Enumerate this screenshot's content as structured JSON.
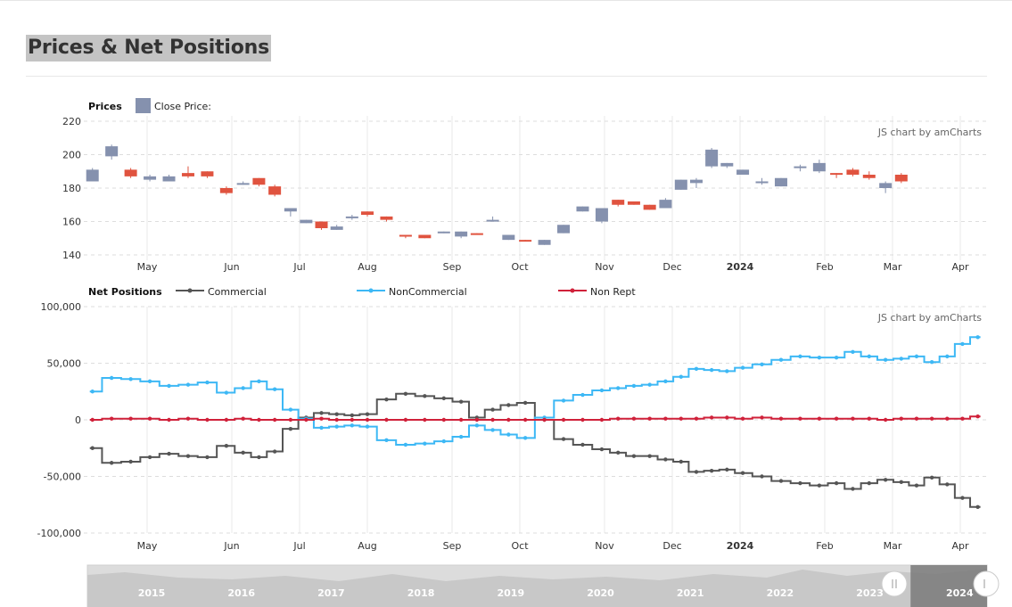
{
  "page_title": "Prices & Net Positions",
  "colors": {
    "up_candle": "#8591ae",
    "down_candle": "#e0533f",
    "commercial": "#555555",
    "noncommercial": "#3db8f5",
    "nonrept": "#d0213a",
    "grid": "#e8e8e8"
  },
  "icons": {
    "legend_close_price": "square-swatch-icon",
    "legend_series": "line-with-dot-icon",
    "scrollbar_grip": "grip-handle-icon"
  },
  "chart_data": [
    {
      "type": "candlestick",
      "legend_title": "Prices",
      "legend_items": [
        "Close Price:"
      ],
      "credit": "JS chart by amCharts",
      "ylim": [
        140,
        220
      ],
      "y_ticks": [
        "220",
        "200",
        "180",
        "160",
        "140"
      ],
      "x_ticks": [
        "May",
        "Jun",
        "Jul",
        "Aug",
        "Sep",
        "Oct",
        "Nov",
        "Dec",
        "2024",
        "Feb",
        "Mar",
        "Apr"
      ],
      "grid": "dashed horizontal, solid vertical",
      "candles": [
        {
          "date": "2023-04-11",
          "open": 184,
          "close": 191,
          "high": 192,
          "low": 184
        },
        {
          "date": "2023-04-18",
          "open": 199,
          "close": 205,
          "high": 206,
          "low": 197
        },
        {
          "date": "2023-04-25",
          "open": 191,
          "close": 187,
          "high": 192,
          "low": 186
        },
        {
          "date": "2023-05-02",
          "open": 185,
          "close": 187,
          "high": 188,
          "low": 184
        },
        {
          "date": "2023-05-09",
          "open": 184,
          "close": 187,
          "high": 188,
          "low": 184
        },
        {
          "date": "2023-05-16",
          "open": 189,
          "close": 187,
          "high": 193,
          "low": 186
        },
        {
          "date": "2023-05-23",
          "open": 190,
          "close": 187,
          "high": 190,
          "low": 186
        },
        {
          "date": "2023-05-30",
          "open": 180,
          "close": 177,
          "high": 181,
          "low": 176
        },
        {
          "date": "2023-06-06",
          "open": 182,
          "close": 183,
          "high": 184,
          "low": 182
        },
        {
          "date": "2023-06-13",
          "open": 186,
          "close": 182,
          "high": 186,
          "low": 181
        },
        {
          "date": "2023-06-20",
          "open": 181,
          "close": 176,
          "high": 182,
          "low": 175
        },
        {
          "date": "2023-06-27",
          "open": 166,
          "close": 168,
          "high": 168,
          "low": 163
        },
        {
          "date": "2023-07-04",
          "open": 159,
          "close": 161,
          "high": 161,
          "low": 159
        },
        {
          "date": "2023-07-11",
          "open": 160,
          "close": 156,
          "high": 160,
          "low": 155
        },
        {
          "date": "2023-07-18",
          "open": 155,
          "close": 157,
          "high": 158,
          "low": 155
        },
        {
          "date": "2023-07-25",
          "open": 162,
          "close": 163,
          "high": 164,
          "low": 161
        },
        {
          "date": "2023-08-01",
          "open": 166,
          "close": 164,
          "high": 166,
          "low": 163
        },
        {
          "date": "2023-08-08",
          "open": 163,
          "close": 161,
          "high": 163,
          "low": 160
        },
        {
          "date": "2023-08-15",
          "open": 152,
          "close": 151,
          "high": 152,
          "low": 150
        },
        {
          "date": "2023-08-22",
          "open": 152,
          "close": 150,
          "high": 152,
          "low": 150
        },
        {
          "date": "2023-08-29",
          "open": 153,
          "close": 154,
          "high": 154,
          "low": 153
        },
        {
          "date": "2023-09-05",
          "open": 151,
          "close": 154,
          "high": 154,
          "low": 150
        },
        {
          "date": "2023-09-12",
          "open": 153,
          "close": 152,
          "high": 153,
          "low": 152
        },
        {
          "date": "2023-09-19",
          "open": 160,
          "close": 161,
          "high": 163,
          "low": 160
        },
        {
          "date": "2023-09-26",
          "open": 149,
          "close": 152,
          "high": 152,
          "low": 149
        },
        {
          "date": "2023-10-03",
          "open": 149,
          "close": 148,
          "high": 149,
          "low": 148
        },
        {
          "date": "2023-10-10",
          "open": 146,
          "close": 149,
          "high": 149,
          "low": 146
        },
        {
          "date": "2023-10-17",
          "open": 153,
          "close": 158,
          "high": 158,
          "low": 153
        },
        {
          "date": "2023-10-24",
          "open": 166,
          "close": 169,
          "high": 169,
          "low": 166
        },
        {
          "date": "2023-10-31",
          "open": 160,
          "close": 168,
          "high": 168,
          "low": 159
        },
        {
          "date": "2023-11-07",
          "open": 173,
          "close": 170,
          "high": 173,
          "low": 169
        },
        {
          "date": "2023-11-14",
          "open": 172,
          "close": 170,
          "high": 172,
          "low": 170
        },
        {
          "date": "2023-11-21",
          "open": 170,
          "close": 167,
          "high": 170,
          "low": 167
        },
        {
          "date": "2023-11-28",
          "open": 168,
          "close": 173,
          "high": 174,
          "low": 168
        },
        {
          "date": "2023-12-05",
          "open": 179,
          "close": 185,
          "high": 185,
          "low": 179
        },
        {
          "date": "2023-12-12",
          "open": 183,
          "close": 185,
          "high": 186,
          "low": 180
        },
        {
          "date": "2023-12-19",
          "open": 193,
          "close": 203,
          "high": 204,
          "low": 192
        },
        {
          "date": "2023-12-26",
          "open": 193,
          "close": 195,
          "high": 195,
          "low": 192
        },
        {
          "date": "2024-01-02",
          "open": 188,
          "close": 191,
          "high": 191,
          "low": 188
        },
        {
          "date": "2024-01-09",
          "open": 183,
          "close": 184,
          "high": 186,
          "low": 182
        },
        {
          "date": "2024-01-16",
          "open": 181,
          "close": 186,
          "high": 186,
          "low": 181
        },
        {
          "date": "2024-01-23",
          "open": 192,
          "close": 193,
          "high": 194,
          "low": 190
        },
        {
          "date": "2024-01-30",
          "open": 190,
          "close": 195,
          "high": 197,
          "low": 189
        },
        {
          "date": "2024-02-06",
          "open": 189,
          "close": 188,
          "high": 189,
          "low": 186
        },
        {
          "date": "2024-02-13",
          "open": 191,
          "close": 188,
          "high": 192,
          "low": 187
        },
        {
          "date": "2024-02-20",
          "open": 188,
          "close": 186,
          "high": 190,
          "low": 185
        },
        {
          "date": "2024-02-27",
          "open": 180,
          "close": 183,
          "high": 184,
          "low": 177
        },
        {
          "date": "2024-03-05",
          "open": 188,
          "close": 184,
          "high": 189,
          "low": 183
        }
      ]
    },
    {
      "type": "line",
      "step": true,
      "legend_title": "Net Positions",
      "credit": "JS chart by amCharts",
      "ylim": [
        -100000,
        100000
      ],
      "y_ticks": [
        "100,000",
        "50,000",
        "0",
        "-50,000",
        "-100,000"
      ],
      "x_ticks": [
        "May",
        "Jun",
        "Jul",
        "Aug",
        "Sep",
        "Oct",
        "Nov",
        "Dec",
        "2024",
        "Feb",
        "Mar",
        "Apr"
      ],
      "x": [
        "2023-04-11",
        "2023-04-18",
        "2023-04-25",
        "2023-05-02",
        "2023-05-09",
        "2023-05-16",
        "2023-05-23",
        "2023-05-30",
        "2023-06-06",
        "2023-06-13",
        "2023-06-20",
        "2023-06-27",
        "2023-07-04",
        "2023-07-11",
        "2023-07-18",
        "2023-07-25",
        "2023-08-01",
        "2023-08-08",
        "2023-08-15",
        "2023-08-22",
        "2023-08-29",
        "2023-09-05",
        "2023-09-12",
        "2023-09-19",
        "2023-09-26",
        "2023-10-03",
        "2023-10-10",
        "2023-10-17",
        "2023-10-24",
        "2023-10-31",
        "2023-11-07",
        "2023-11-14",
        "2023-11-21",
        "2023-11-28",
        "2023-12-05",
        "2023-12-12",
        "2023-12-19",
        "2023-12-26",
        "2024-01-02",
        "2024-01-09",
        "2024-01-16",
        "2024-01-23",
        "2024-01-30",
        "2024-02-06",
        "2024-02-13",
        "2024-02-20",
        "2024-02-27",
        "2024-03-05",
        "2024-03-12",
        "2024-03-19",
        "2024-03-26",
        "2024-04-02",
        "2024-04-09"
      ],
      "series": [
        {
          "name": "Commercial",
          "values": [
            -25000,
            -38000,
            -37000,
            -33000,
            -30000,
            -32000,
            -33000,
            -23000,
            -29000,
            -33000,
            -28000,
            -8000,
            2000,
            6000,
            5000,
            4000,
            5000,
            18000,
            23000,
            21000,
            19000,
            16000,
            2000,
            9000,
            13000,
            15000,
            0,
            -17000,
            -22000,
            -26000,
            -29000,
            -32000,
            -32000,
            -35000,
            -37000,
            -46000,
            -45000,
            -44000,
            -47000,
            -50000,
            -54000,
            -56000,
            -58000,
            -56000,
            -61000,
            -56000,
            -53000,
            -55000,
            -58000,
            -51000,
            -57000,
            -69000,
            -77000
          ]
        },
        {
          "name": "NonCommercial",
          "values": [
            25000,
            37000,
            36000,
            34000,
            30000,
            31000,
            33000,
            24000,
            28000,
            34000,
            27000,
            9000,
            1000,
            -7000,
            -6000,
            -5000,
            -6000,
            -18000,
            -22000,
            -21000,
            -19000,
            -15000,
            -5000,
            -9000,
            -13000,
            -16000,
            2000,
            17000,
            22000,
            26000,
            28000,
            30000,
            31000,
            34000,
            38000,
            45000,
            44000,
            43000,
            46000,
            49000,
            53000,
            56000,
            55000,
            55000,
            60000,
            56000,
            53000,
            54000,
            56000,
            51000,
            56000,
            67000,
            73000
          ]
        },
        {
          "name": "Non Rept",
          "values": [
            0,
            1000,
            1000,
            1000,
            0,
            1000,
            0,
            0,
            1000,
            0,
            0,
            0,
            0,
            1000,
            0,
            0,
            0,
            0,
            0,
            0,
            0,
            0,
            0,
            0,
            0,
            0,
            0,
            0,
            0,
            0,
            1000,
            1000,
            1000,
            1000,
            1000,
            1000,
            2000,
            2000,
            1000,
            2000,
            1000,
            1000,
            1000,
            1000,
            1000,
            1000,
            0,
            1000,
            1000,
            1000,
            1000,
            1000,
            3000
          ]
        }
      ]
    }
  ],
  "scrollbar": {
    "years": [
      "2015",
      "2016",
      "2017",
      "2018",
      "2019",
      "2020",
      "2021",
      "2022",
      "2023",
      "2024"
    ],
    "selected_fraction": [
      0.915,
      1.0
    ]
  }
}
